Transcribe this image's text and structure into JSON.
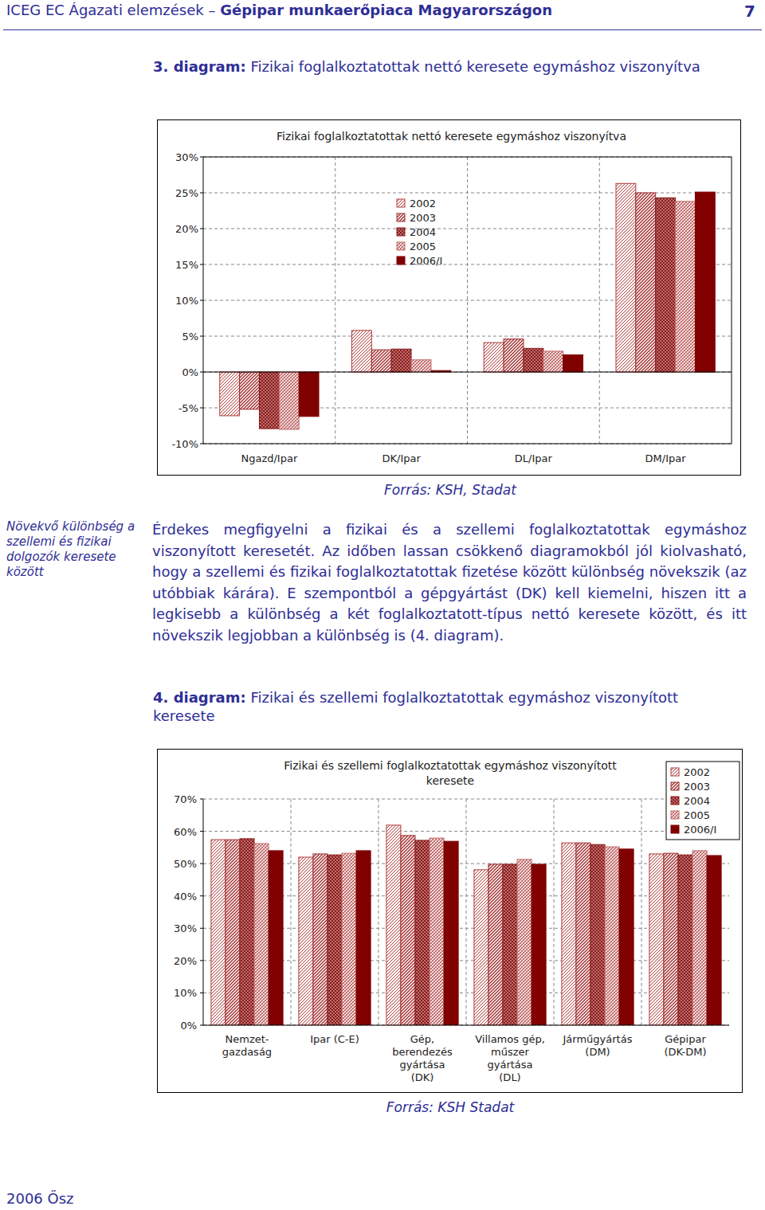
{
  "header": {
    "prefix": "ICEG EC Ágazati elemzések –",
    "bold": "Gépipar munkaerőpiaca Magyarországon",
    "page": "7"
  },
  "captions": [
    {
      "label": "3. diagram:",
      "text": "Fizikai foglalkoztatottak nettó keresete egymáshoz viszonyítva"
    },
    {
      "label": "4. diagram:",
      "text": "Fizikai és szellemi foglalkoztatottak egymáshoz viszonyított keresete"
    }
  ],
  "sources": [
    "Forrás: KSH, Stadat",
    "Forrás: KSH Stadat"
  ],
  "side_note": "Növekvő különbség a szellemi és fizikai dolgozók keresete között",
  "paragraph": "Érdekes megfigyelni a fizikai és a szellemi foglalkoztatottak egymáshoz viszonyított keresetét. Az időben lassan csökkenő diagramokból jól kiolvasható, hogy a szellemi és fizikai foglalkoztatottak fizetése között különbség növekszik (az utóbbiak kárára). E szempontból a gépgyártást (DK) kell kiemelni, hiszen itt a legkisebb a különbség a két foglalkoztatott-típus nettó keresete között, és itt növekszik legjobban a különbség is (4. diagram).",
  "footer": "2006 Ősz",
  "chart_data": [
    {
      "type": "bar",
      "title": "Fizikai foglalkoztatottak nettó keresete egymáshoz viszonyítva",
      "categories": [
        "Ngazd/Ipar",
        "DK/Ipar",
        "DL/Ipar",
        "DM/Ipar"
      ],
      "series": [
        {
          "name": "2002",
          "color": "#b03a3a",
          "values": [
            -6.1,
            5.8,
            4.1,
            26.3
          ]
        },
        {
          "name": "2003",
          "color": "#a02c2c",
          "values": [
            -5.2,
            3.1,
            4.6,
            25.0
          ]
        },
        {
          "name": "2004",
          "color": "#8b1a1a",
          "values": [
            -7.9,
            3.2,
            3.3,
            24.3
          ]
        },
        {
          "name": "2005",
          "color": "#c26a6a",
          "values": [
            -8.0,
            1.7,
            2.9,
            23.8
          ]
        },
        {
          "name": "2006/I",
          "color": "#800000",
          "values": [
            -6.2,
            0.2,
            2.4,
            25.1
          ]
        }
      ],
      "ylim": [
        -10,
        30
      ],
      "yticks": [
        {
          "value": -10,
          "label": "-10%"
        },
        {
          "value": -5,
          "label": "-5%"
        },
        {
          "value": 0,
          "label": "0%"
        },
        {
          "value": 5,
          "label": "5%"
        },
        {
          "value": 10,
          "label": "10%"
        },
        {
          "value": 15,
          "label": "15%"
        },
        {
          "value": 20,
          "label": "20%"
        },
        {
          "value": 25,
          "label": "25%"
        },
        {
          "value": 30,
          "label": "30%"
        }
      ],
      "grid": true,
      "legend": "top"
    },
    {
      "type": "bar",
      "title": "Fizikai és szellemi foglalkoztatottak egymáshoz viszonyított\nkeresete",
      "categories": [
        "Nemzet-\ngazdaság",
        "Ipar (C-E)",
        "Gép,\nberendezés\ngyártása\n(DK)",
        "Villamos gép,\nműszer\ngyártása\n(DL)",
        "Járműgyártás\n(DM)",
        "Gépipar\n(DK-DM)"
      ],
      "series": [
        {
          "name": "2002",
          "color": "#b03a3a",
          "values": [
            57.4,
            52.0,
            61.9,
            48.1,
            56.4,
            53.0
          ]
        },
        {
          "name": "2003",
          "color": "#a02c2c",
          "values": [
            57.4,
            53.0,
            58.7,
            49.8,
            56.4,
            53.2
          ]
        },
        {
          "name": "2004",
          "color": "#8b1a1a",
          "values": [
            57.7,
            52.7,
            57.2,
            49.8,
            55.9,
            52.7
          ]
        },
        {
          "name": "2005",
          "color": "#c26a6a",
          "values": [
            56.2,
            53.2,
            57.9,
            51.3,
            55.2,
            54.0
          ]
        },
        {
          "name": "2006/I",
          "color": "#800000",
          "values": [
            54.0,
            54.0,
            56.9,
            49.8,
            54.5,
            52.5
          ]
        }
      ],
      "ylim": [
        0,
        70
      ],
      "yticks": [
        {
          "value": 0,
          "label": "0%"
        },
        {
          "value": 10,
          "label": "10%"
        },
        {
          "value": 20,
          "label": "20%"
        },
        {
          "value": 30,
          "label": "30%"
        },
        {
          "value": 40,
          "label": "40%"
        },
        {
          "value": 50,
          "label": "50%"
        },
        {
          "value": 60,
          "label": "60%"
        },
        {
          "value": 70,
          "label": "70%"
        }
      ],
      "grid": true,
      "legend": "top-right"
    }
  ]
}
